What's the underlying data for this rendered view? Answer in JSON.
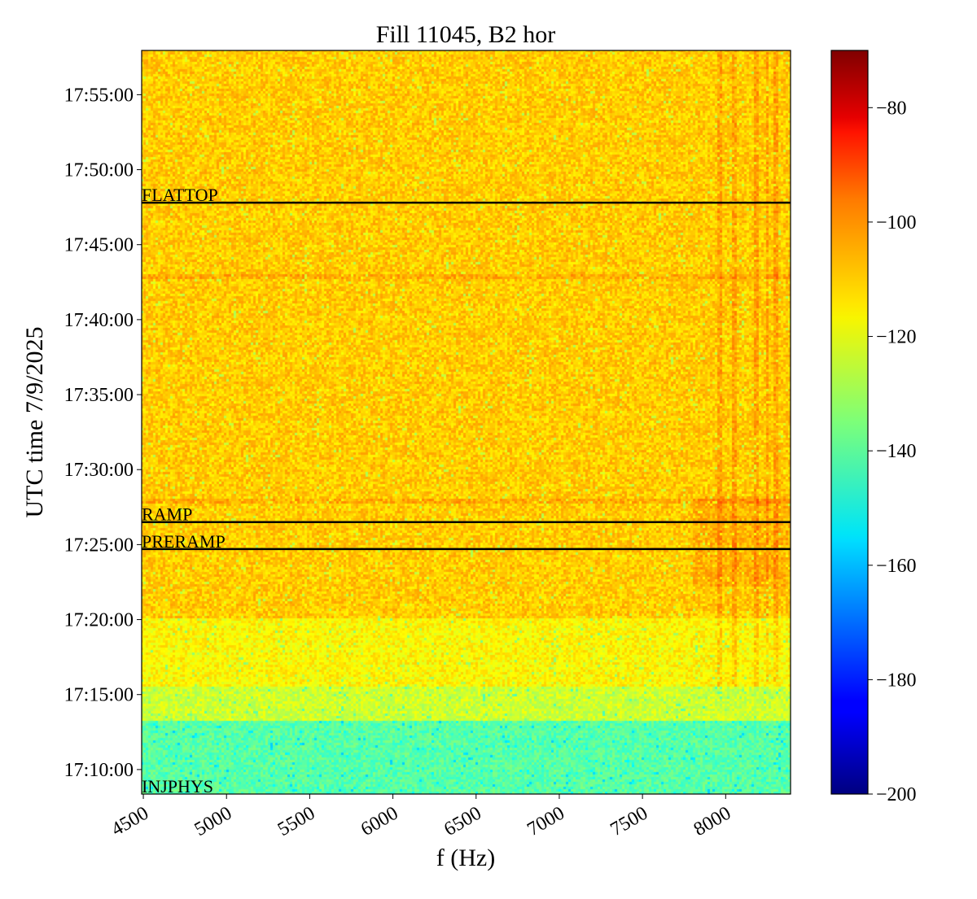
{
  "chart_data": {
    "type": "heatmap",
    "title": "Fill 11045, B2 hor",
    "xlabel": "f (Hz)",
    "ylabel": "UTC time 7/9/2025",
    "xlim": [
      4490,
      8390
    ],
    "ylim": [
      "17:08:22",
      "17:57:57"
    ],
    "x_ticks": [
      4500,
      5000,
      5500,
      6000,
      6500,
      7000,
      7500,
      8000
    ],
    "x_tick_labels": [
      "4500",
      "5000",
      "5500",
      "6000",
      "6500",
      "7000",
      "7500",
      "8000"
    ],
    "y_ticks": [
      "17:10:00",
      "17:15:00",
      "17:20:00",
      "17:25:00",
      "17:30:00",
      "17:35:00",
      "17:40:00",
      "17:45:00",
      "17:50:00",
      "17:55:00"
    ],
    "y_tick_labels": [
      "17:10:00",
      "17:15:00",
      "17:20:00",
      "17:25:00",
      "17:30:00",
      "17:35:00",
      "17:40:00",
      "17:45:00",
      "17:50:00",
      "17:55:00"
    ],
    "colorbar": {
      "range": [
        -200,
        -70
      ],
      "ticks": [
        -80,
        -100,
        -120,
        -140,
        -160,
        -180,
        -200
      ],
      "tick_labels": [
        "−80",
        "−100",
        "−120",
        "−140",
        "−160",
        "−180",
        "−200"
      ],
      "colormap": "jet"
    },
    "events": [
      {
        "label": "FLATTOP",
        "time": "17:47:48"
      },
      {
        "label": "RAMP",
        "time": "17:26:30"
      },
      {
        "label": "PRERAMP",
        "time": "17:24:42"
      },
      {
        "label": "INJPHYS",
        "time": "17:08:22"
      }
    ],
    "regions": [
      {
        "from": "17:08:22",
        "to": "17:13:10",
        "mean_level": -140
      },
      {
        "from": "17:13:10",
        "to": "17:15:30",
        "mean_level": -125
      },
      {
        "from": "17:15:30",
        "to": "17:20:00",
        "mean_level": -118
      },
      {
        "from": "17:20:00",
        "to": "17:57:57",
        "mean_level": -112
      }
    ],
    "vertical_lines_hz": [
      7960,
      8050,
      8180,
      8250,
      8300
    ],
    "horizontal_lines": [
      "17:27:50",
      "17:42:50"
    ]
  }
}
